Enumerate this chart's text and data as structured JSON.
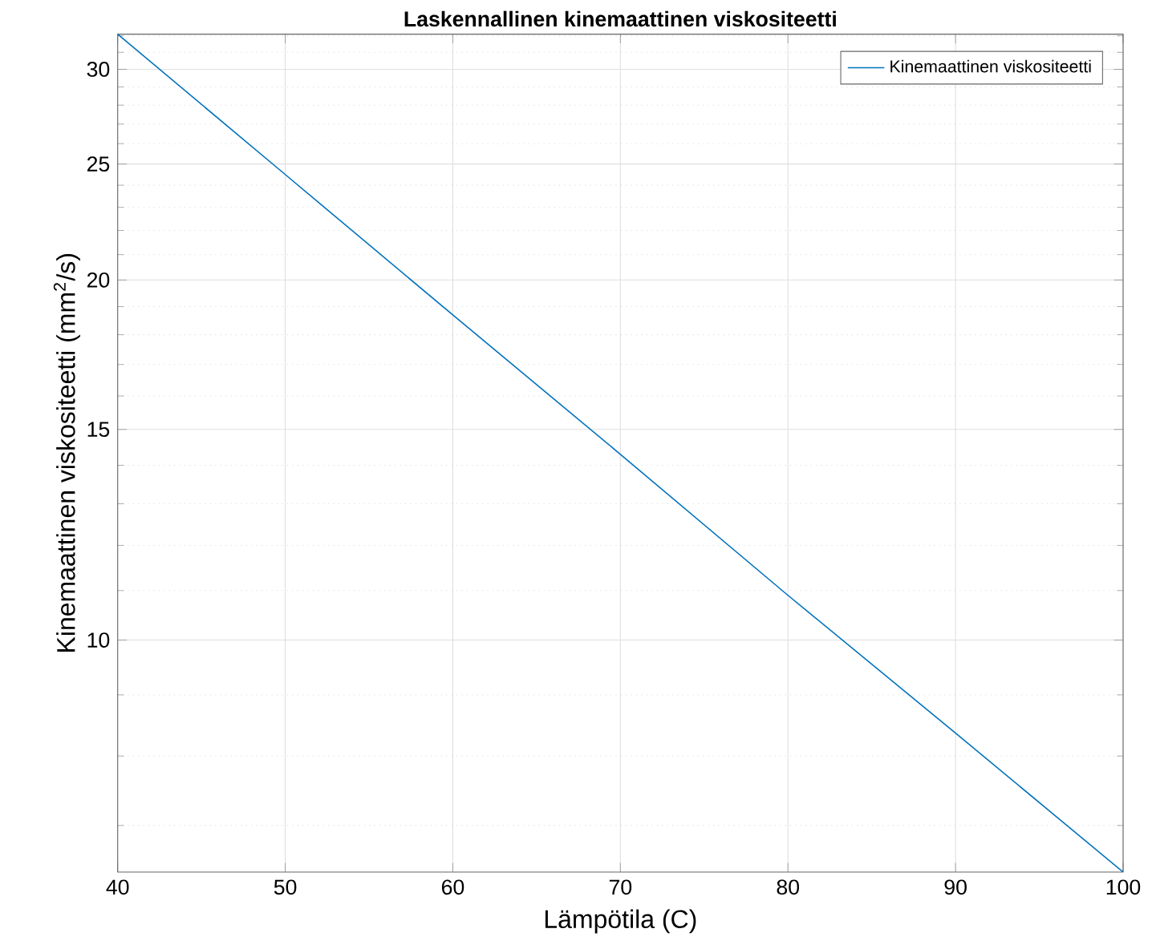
{
  "chart_data": {
    "type": "line",
    "title": "Laskennallinen kinemaattinen viskositeetti",
    "xlabel": "Lämpötila (C)",
    "ylabel": "Kinemaattinen viskositeetti (mm$^{2}$/s)",
    "x": [
      40,
      50,
      60,
      70,
      80,
      90,
      100
    ],
    "series": [
      {
        "name": "Kinemaattinen viskositeetti",
        "color": "#0072bd",
        "values": [
          32.1,
          24.5,
          18.7,
          14.3,
          10.9,
          8.36,
          6.4
        ]
      }
    ],
    "xlim": [
      40,
      100
    ],
    "xticks": [
      40,
      50,
      60,
      70,
      80,
      90,
      100
    ],
    "ylim": [
      6.4,
      32.1
    ],
    "yticks": [
      10,
      15,
      20,
      25,
      30
    ],
    "log": "y",
    "grid": true,
    "legend": "top right",
    "marker": "none",
    "line_style": "solid"
  }
}
